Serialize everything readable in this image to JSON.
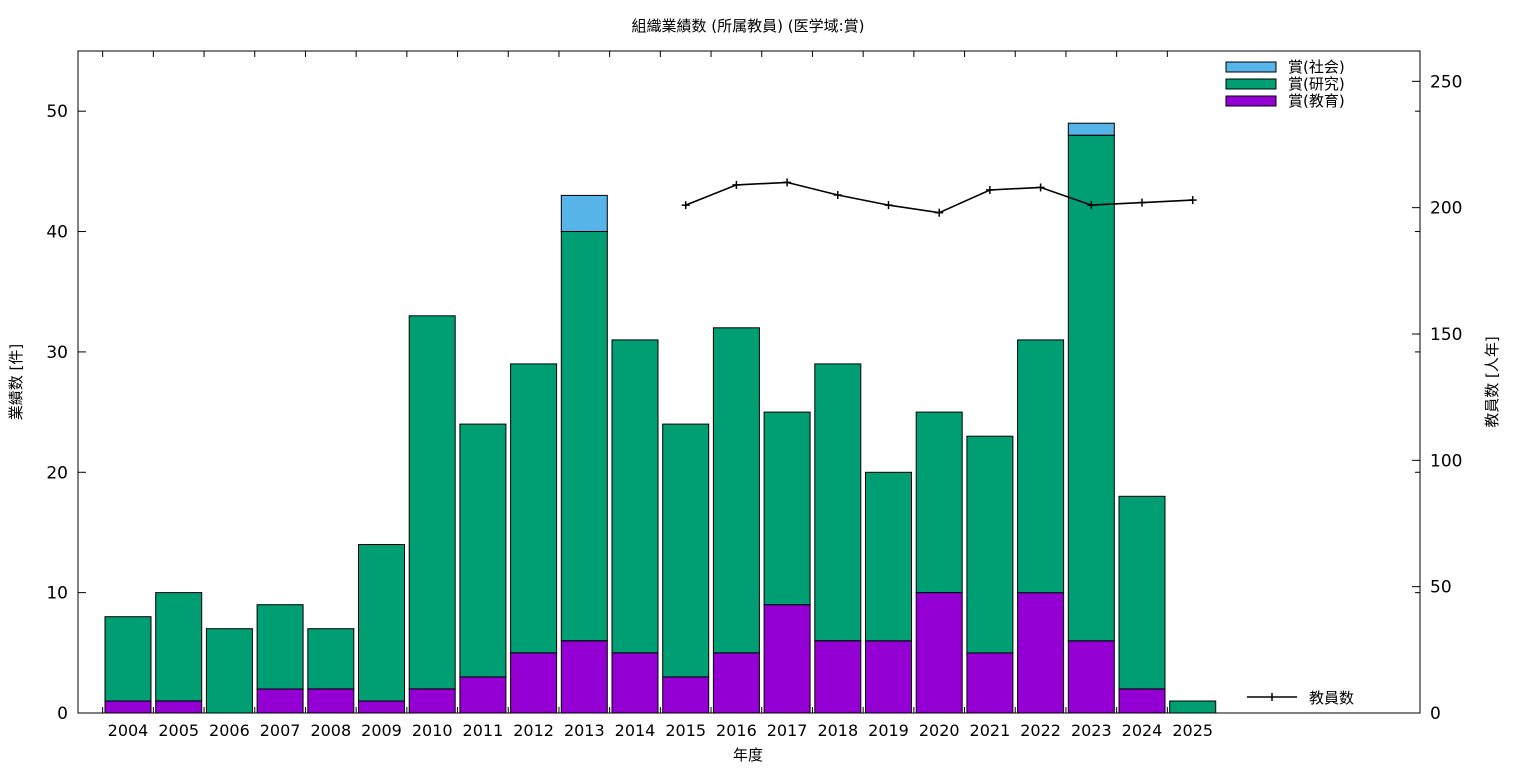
{
  "chart_data": {
    "type": "bar",
    "title": "組織業績数 (所属教員) (医学域:賞)",
    "xlabel": "年度",
    "ylabel": "業績数 [件]",
    "y2label": "教員数 [人年]",
    "ylim": [
      0,
      55
    ],
    "y2lim": [
      0,
      262
    ],
    "yticks": [
      "0",
      "10",
      "20",
      "30",
      "40",
      "50"
    ],
    "y2ticks": [
      "0",
      "50",
      "100",
      "150",
      "200",
      "250"
    ],
    "stacked": true,
    "categories": [
      "2004",
      "2005",
      "2006",
      "2007",
      "2008",
      "2009",
      "2010",
      "2011",
      "2012",
      "2013",
      "2014",
      "2015",
      "2016",
      "2017",
      "2018",
      "2019",
      "2020",
      "2021",
      "2022",
      "2023",
      "2024",
      "2025"
    ],
    "series": [
      {
        "name": "賞(教育)",
        "color": "#9400d3",
        "values": [
          1,
          1,
          0,
          2,
          2,
          1,
          2,
          3,
          5,
          6,
          5,
          3,
          5,
          9,
          6,
          6,
          10,
          5,
          10,
          6,
          2,
          0
        ]
      },
      {
        "name": "賞(研究)",
        "color": "#009e73",
        "values": [
          7,
          9,
          7,
          7,
          5,
          13,
          31,
          21,
          24,
          34,
          26,
          21,
          27,
          16,
          23,
          14,
          15,
          18,
          21,
          42,
          16,
          1
        ]
      },
      {
        "name": "賞(社会)",
        "color": "#56b4e9",
        "values": [
          0,
          0,
          0,
          0,
          0,
          0,
          0,
          0,
          0,
          3,
          0,
          0,
          0,
          0,
          0,
          0,
          0,
          0,
          0,
          1,
          0,
          0
        ]
      }
    ],
    "legend_order": [
      "賞(社会)",
      "賞(研究)",
      "賞(教育)"
    ],
    "legend_position": "top-right",
    "line_series": {
      "name": "教員数",
      "axis": "right",
      "color": "#000000",
      "x": [
        "2015",
        "2016",
        "2017",
        "2018",
        "2019",
        "2020",
        "2021",
        "2022",
        "2023",
        "2024",
        "2025"
      ],
      "values": [
        201,
        209,
        210,
        205,
        201,
        198,
        207,
        208,
        201,
        202,
        203
      ]
    },
    "grid": false
  }
}
